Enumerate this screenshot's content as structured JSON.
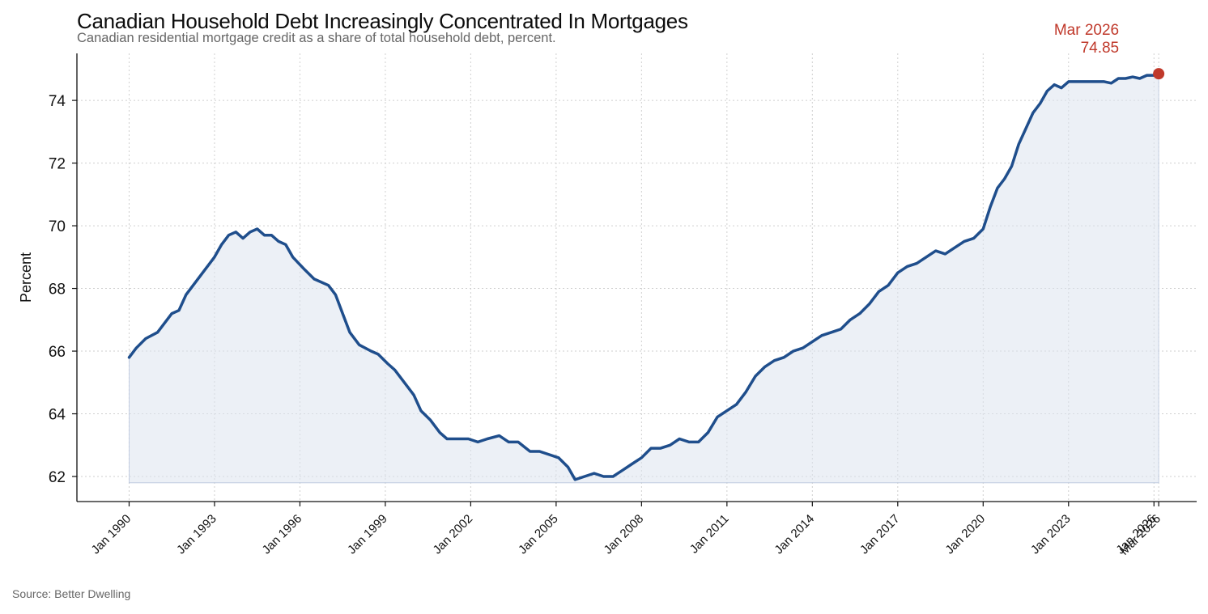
{
  "title": "Canadian Household Debt Increasingly Concentrated In Mortgages",
  "subtitle": "Canadian residential mortgage credit as a share of total household debt, percent.",
  "source": "Source: Better Dwelling",
  "colors": {
    "line": "#1f4e8c",
    "fill": "#dce3ee",
    "highlight": "#c0392b",
    "grid": "#cfcfcf"
  },
  "chart_data": {
    "type": "area",
    "title": "Canadian Household Debt Increasingly Concentrated In Mortgages",
    "ylabel": "Percent",
    "xlabel": "",
    "ylim": [
      61.2,
      75.5
    ],
    "xlim": [
      "1988-03",
      "2027-07"
    ],
    "grid": true,
    "yticks": [
      62,
      64,
      66,
      68,
      70,
      72,
      74
    ],
    "xticks": [
      "Jan 1990",
      "Jan 1993",
      "Jan 1996",
      "Jan 1999",
      "Jan 2002",
      "Jan 2005",
      "Jan 2008",
      "Jan 2011",
      "Jan 2014",
      "Jan 2017",
      "Jan 2020",
      "Jan 2023",
      "Jan 2026",
      "Mar 2026"
    ],
    "xtick_dates": [
      "1990-01",
      "1993-01",
      "1996-01",
      "1999-01",
      "2002-01",
      "2005-01",
      "2008-01",
      "2011-01",
      "2014-01",
      "2017-01",
      "2020-01",
      "2023-01",
      "2026-01",
      "2026-03"
    ],
    "series": [
      {
        "values": [
          [
            "1990-01",
            65.8
          ],
          [
            "1990-04",
            66.1
          ],
          [
            "1990-08",
            66.4
          ],
          [
            "1991-01",
            66.6
          ],
          [
            "1991-04",
            66.9
          ],
          [
            "1991-07",
            67.2
          ],
          [
            "1991-10",
            67.3
          ],
          [
            "1992-01",
            67.8
          ],
          [
            "1992-05",
            68.2
          ],
          [
            "1992-09",
            68.6
          ],
          [
            "1993-01",
            69.0
          ],
          [
            "1993-04",
            69.4
          ],
          [
            "1993-07",
            69.7
          ],
          [
            "1993-10",
            69.8
          ],
          [
            "1994-01",
            69.6
          ],
          [
            "1994-04",
            69.8
          ],
          [
            "1994-07",
            69.9
          ],
          [
            "1994-10",
            69.7
          ],
          [
            "1995-01",
            69.7
          ],
          [
            "1995-04",
            69.5
          ],
          [
            "1995-07",
            69.4
          ],
          [
            "1995-10",
            69.0
          ],
          [
            "1996-03",
            68.6
          ],
          [
            "1996-07",
            68.3
          ],
          [
            "1997-01",
            68.1
          ],
          [
            "1997-04",
            67.8
          ],
          [
            "1997-07",
            67.2
          ],
          [
            "1997-10",
            66.6
          ],
          [
            "1998-02",
            66.2
          ],
          [
            "1998-07",
            66.0
          ],
          [
            "1998-10",
            65.9
          ],
          [
            "1999-02",
            65.6
          ],
          [
            "1999-05",
            65.4
          ],
          [
            "1999-09",
            65.0
          ],
          [
            "2000-01",
            64.6
          ],
          [
            "2000-04",
            64.1
          ],
          [
            "2000-08",
            63.8
          ],
          [
            "2000-12",
            63.4
          ],
          [
            "2001-03",
            63.2
          ],
          [
            "2001-07",
            63.2
          ],
          [
            "2001-12",
            63.2
          ],
          [
            "2002-04",
            63.1
          ],
          [
            "2002-08",
            63.2
          ],
          [
            "2003-01",
            63.3
          ],
          [
            "2003-05",
            63.1
          ],
          [
            "2003-09",
            63.1
          ],
          [
            "2004-02",
            62.8
          ],
          [
            "2004-06",
            62.8
          ],
          [
            "2004-10",
            62.7
          ],
          [
            "2005-02",
            62.6
          ],
          [
            "2005-06",
            62.3
          ],
          [
            "2005-09",
            61.9
          ],
          [
            "2006-01",
            62.0
          ],
          [
            "2006-05",
            62.1
          ],
          [
            "2006-09",
            62.0
          ],
          [
            "2007-01",
            62.0
          ],
          [
            "2007-05",
            62.2
          ],
          [
            "2007-09",
            62.4
          ],
          [
            "2008-01",
            62.6
          ],
          [
            "2008-05",
            62.9
          ],
          [
            "2008-09",
            62.9
          ],
          [
            "2009-01",
            63.0
          ],
          [
            "2009-05",
            63.2
          ],
          [
            "2009-09",
            63.1
          ],
          [
            "2010-01",
            63.1
          ],
          [
            "2010-05",
            63.4
          ],
          [
            "2010-09",
            63.9
          ],
          [
            "2011-01",
            64.1
          ],
          [
            "2011-05",
            64.3
          ],
          [
            "2011-09",
            64.7
          ],
          [
            "2012-01",
            65.2
          ],
          [
            "2012-05",
            65.5
          ],
          [
            "2012-09",
            65.7
          ],
          [
            "2013-01",
            65.8
          ],
          [
            "2013-05",
            66.0
          ],
          [
            "2013-09",
            66.1
          ],
          [
            "2014-01",
            66.3
          ],
          [
            "2014-05",
            66.5
          ],
          [
            "2014-09",
            66.6
          ],
          [
            "2015-01",
            66.7
          ],
          [
            "2015-05",
            67.0
          ],
          [
            "2015-09",
            67.2
          ],
          [
            "2016-01",
            67.5
          ],
          [
            "2016-05",
            67.9
          ],
          [
            "2016-09",
            68.1
          ],
          [
            "2017-01",
            68.5
          ],
          [
            "2017-05",
            68.7
          ],
          [
            "2017-09",
            68.8
          ],
          [
            "2018-01",
            69.0
          ],
          [
            "2018-05",
            69.2
          ],
          [
            "2018-09",
            69.1
          ],
          [
            "2019-01",
            69.3
          ],
          [
            "2019-05",
            69.5
          ],
          [
            "2019-09",
            69.6
          ],
          [
            "2020-01",
            69.9
          ],
          [
            "2020-04",
            70.6
          ],
          [
            "2020-07",
            71.2
          ],
          [
            "2020-10",
            71.5
          ],
          [
            "2021-01",
            71.9
          ],
          [
            "2021-04",
            72.6
          ],
          [
            "2021-07",
            73.1
          ],
          [
            "2021-10",
            73.6
          ],
          [
            "2022-01",
            73.9
          ],
          [
            "2022-04",
            74.3
          ],
          [
            "2022-07",
            74.5
          ],
          [
            "2022-10",
            74.4
          ],
          [
            "2023-01",
            74.6
          ],
          [
            "2023-04",
            74.6
          ],
          [
            "2023-07",
            74.6
          ],
          [
            "2023-10",
            74.6
          ],
          [
            "2024-01",
            74.6
          ],
          [
            "2024-04",
            74.6
          ],
          [
            "2024-07",
            74.55
          ],
          [
            "2024-10",
            74.7
          ],
          [
            "2025-01",
            74.7
          ],
          [
            "2025-04",
            74.75
          ],
          [
            "2025-07",
            74.7
          ],
          [
            "2025-10",
            74.8
          ],
          [
            "2026-01",
            74.8
          ],
          [
            "2026-03",
            74.85
          ]
        ]
      }
    ],
    "fill_baseline": 61.8,
    "highlight": {
      "x": "2026-03",
      "y": 74.85,
      "label_date": "Mar 2026",
      "label_value": "74.85"
    }
  }
}
